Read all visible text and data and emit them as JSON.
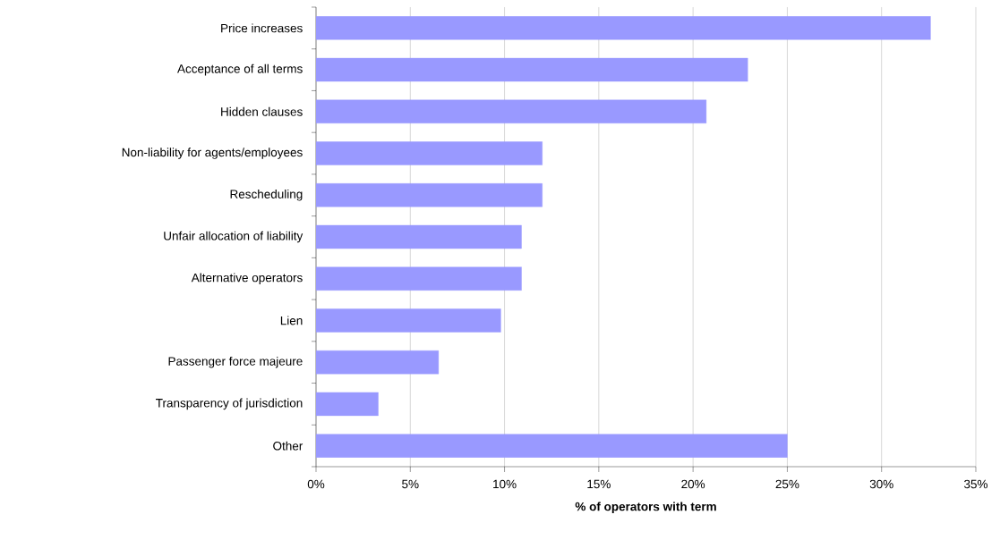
{
  "chart_data": {
    "type": "bar",
    "orientation": "horizontal",
    "categories": [
      "Price increases",
      "Acceptance of all terms",
      "Hidden clauses",
      "Non-liability for agents/employees",
      "Rescheduling",
      "Unfair allocation of liability",
      "Alternative operators",
      "Lien",
      "Passenger force majeure",
      "Transparency of jurisdiction",
      "Other"
    ],
    "values": [
      32.6,
      22.9,
      20.7,
      12.0,
      12.0,
      10.9,
      10.9,
      9.8,
      6.5,
      3.3,
      25
    ],
    "color": "#9999ff",
    "xlabel": "% of operators with term",
    "xlim": [
      0,
      35
    ],
    "xticks": [
      {
        "value": 0,
        "label": "0%"
      },
      {
        "value": 5,
        "label": "5%"
      },
      {
        "value": 10,
        "label": "10%"
      },
      {
        "value": 15,
        "label": "15%"
      },
      {
        "value": 20,
        "label": "20%"
      },
      {
        "value": 25,
        "label": "25%"
      },
      {
        "value": 30,
        "label": "30%"
      },
      {
        "value": 35,
        "label": "35%"
      }
    ],
    "grid": "x"
  }
}
